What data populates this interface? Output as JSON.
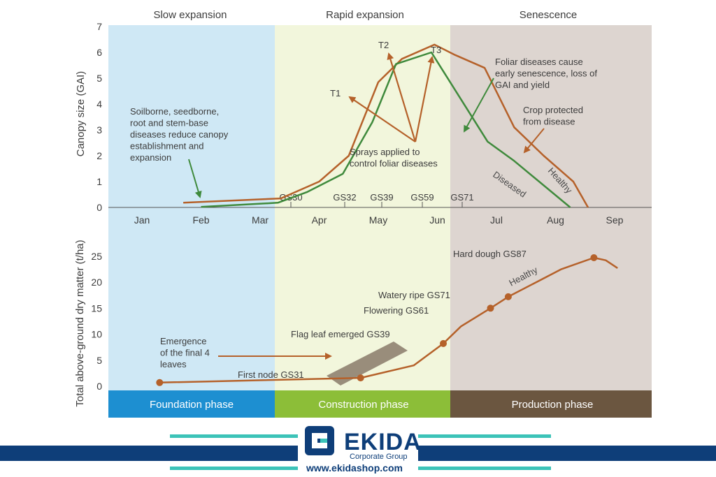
{
  "chart_data": [
    {
      "type": "line",
      "ylabel": "Canopy size (GAI)",
      "ylim": [
        0,
        7
      ],
      "x_months": [
        "Jan",
        "Feb",
        "Mar",
        "Apr",
        "May",
        "Jun",
        "Jul",
        "Aug",
        "Sep"
      ],
      "y_ticks": [
        "0",
        "1",
        "2",
        "3",
        "4",
        "5",
        "6",
        "7"
      ],
      "phases": [
        "Slow expansion",
        "Rapid expansion",
        "Senescence"
      ],
      "growth_stages": [
        "GS30",
        "GS32",
        "GS39",
        "GS59",
        "GS71"
      ],
      "series": [
        {
          "name": "Healthy",
          "color": "#b5612a",
          "points": [
            [
              0.7,
              0.18
            ],
            [
              2.35,
              0.35
            ],
            [
              3.0,
              1.0
            ],
            [
              3.5,
              2.0
            ],
            [
              4.0,
              4.85
            ],
            [
              4.4,
              5.75
            ],
            [
              4.95,
              6.3
            ],
            [
              5.3,
              5.9
            ],
            [
              5.8,
              5.4
            ],
            [
              6.3,
              3.1
            ],
            [
              6.8,
              2.0
            ],
            [
              7.3,
              1.0
            ],
            [
              7.55,
              0.0
            ]
          ]
        },
        {
          "name": "Diseased",
          "color": "#3f8a3c",
          "points": [
            [
              1.0,
              0.02
            ],
            [
              2.3,
              0.18
            ],
            [
              2.8,
              0.6
            ],
            [
              3.4,
              1.3
            ],
            [
              3.9,
              3.3
            ],
            [
              4.3,
              5.55
            ],
            [
              4.9,
              6.0
            ],
            [
              5.85,
              2.55
            ],
            [
              6.3,
              1.8
            ],
            [
              7.25,
              0.0
            ]
          ]
        }
      ],
      "annotations": [
        "T1",
        "T2",
        "T3",
        "Soilborne, seedborne, root and stem-base diseases reduce canopy establishment and expansion",
        "Sprays applied to control foliar diseases",
        "Foliar diseases cause early senescence, loss of GAI and yield",
        "Crop protected from disease"
      ]
    },
    {
      "type": "line",
      "ylabel": "Total above-ground dry matter (t/ha)",
      "ylim": [
        0,
        25
      ],
      "y_ticks": [
        "0",
        "5",
        "10",
        "15",
        "20",
        "25"
      ],
      "phase_bands": [
        "Foundation phase",
        "Construction phase",
        "Production phase"
      ],
      "series": [
        {
          "name": "Healthy",
          "color": "#b5612a",
          "points": [
            [
              0.3,
              0.7
            ],
            [
              3.7,
              1.6
            ],
            [
              4.6,
              4.0
            ],
            [
              5.1,
              8.2
            ],
            [
              5.4,
              11.5
            ],
            [
              5.9,
              15.0
            ],
            [
              6.2,
              17.2
            ],
            [
              7.1,
              22.5
            ],
            [
              7.65,
              24.7
            ],
            [
              7.85,
              24.2
            ],
            [
              8.05,
              22.7
            ]
          ]
        }
      ],
      "markers": [
        {
          "label": "",
          "x": 0.3,
          "y": 0.7
        },
        {
          "label": "First node GS31",
          "x": 3.7,
          "y": 1.6
        },
        {
          "label": "Flag leaf emerged GS39",
          "x": 5.1,
          "y": 8.2
        },
        {
          "label": "Flowering GS61",
          "x": 5.9,
          "y": 15.0
        },
        {
          "label": "Watery ripe GS71",
          "x": 6.2,
          "y": 17.2
        },
        {
          "label": "Hard dough GS87",
          "x": 7.65,
          "y": 24.7
        }
      ],
      "annotations": [
        "Emergence of the final 4 leaves"
      ]
    }
  ],
  "watermark": {
    "brand": "EKIDA",
    "subtitle": "Corporate Group",
    "url": "www.ekidashop.com"
  }
}
